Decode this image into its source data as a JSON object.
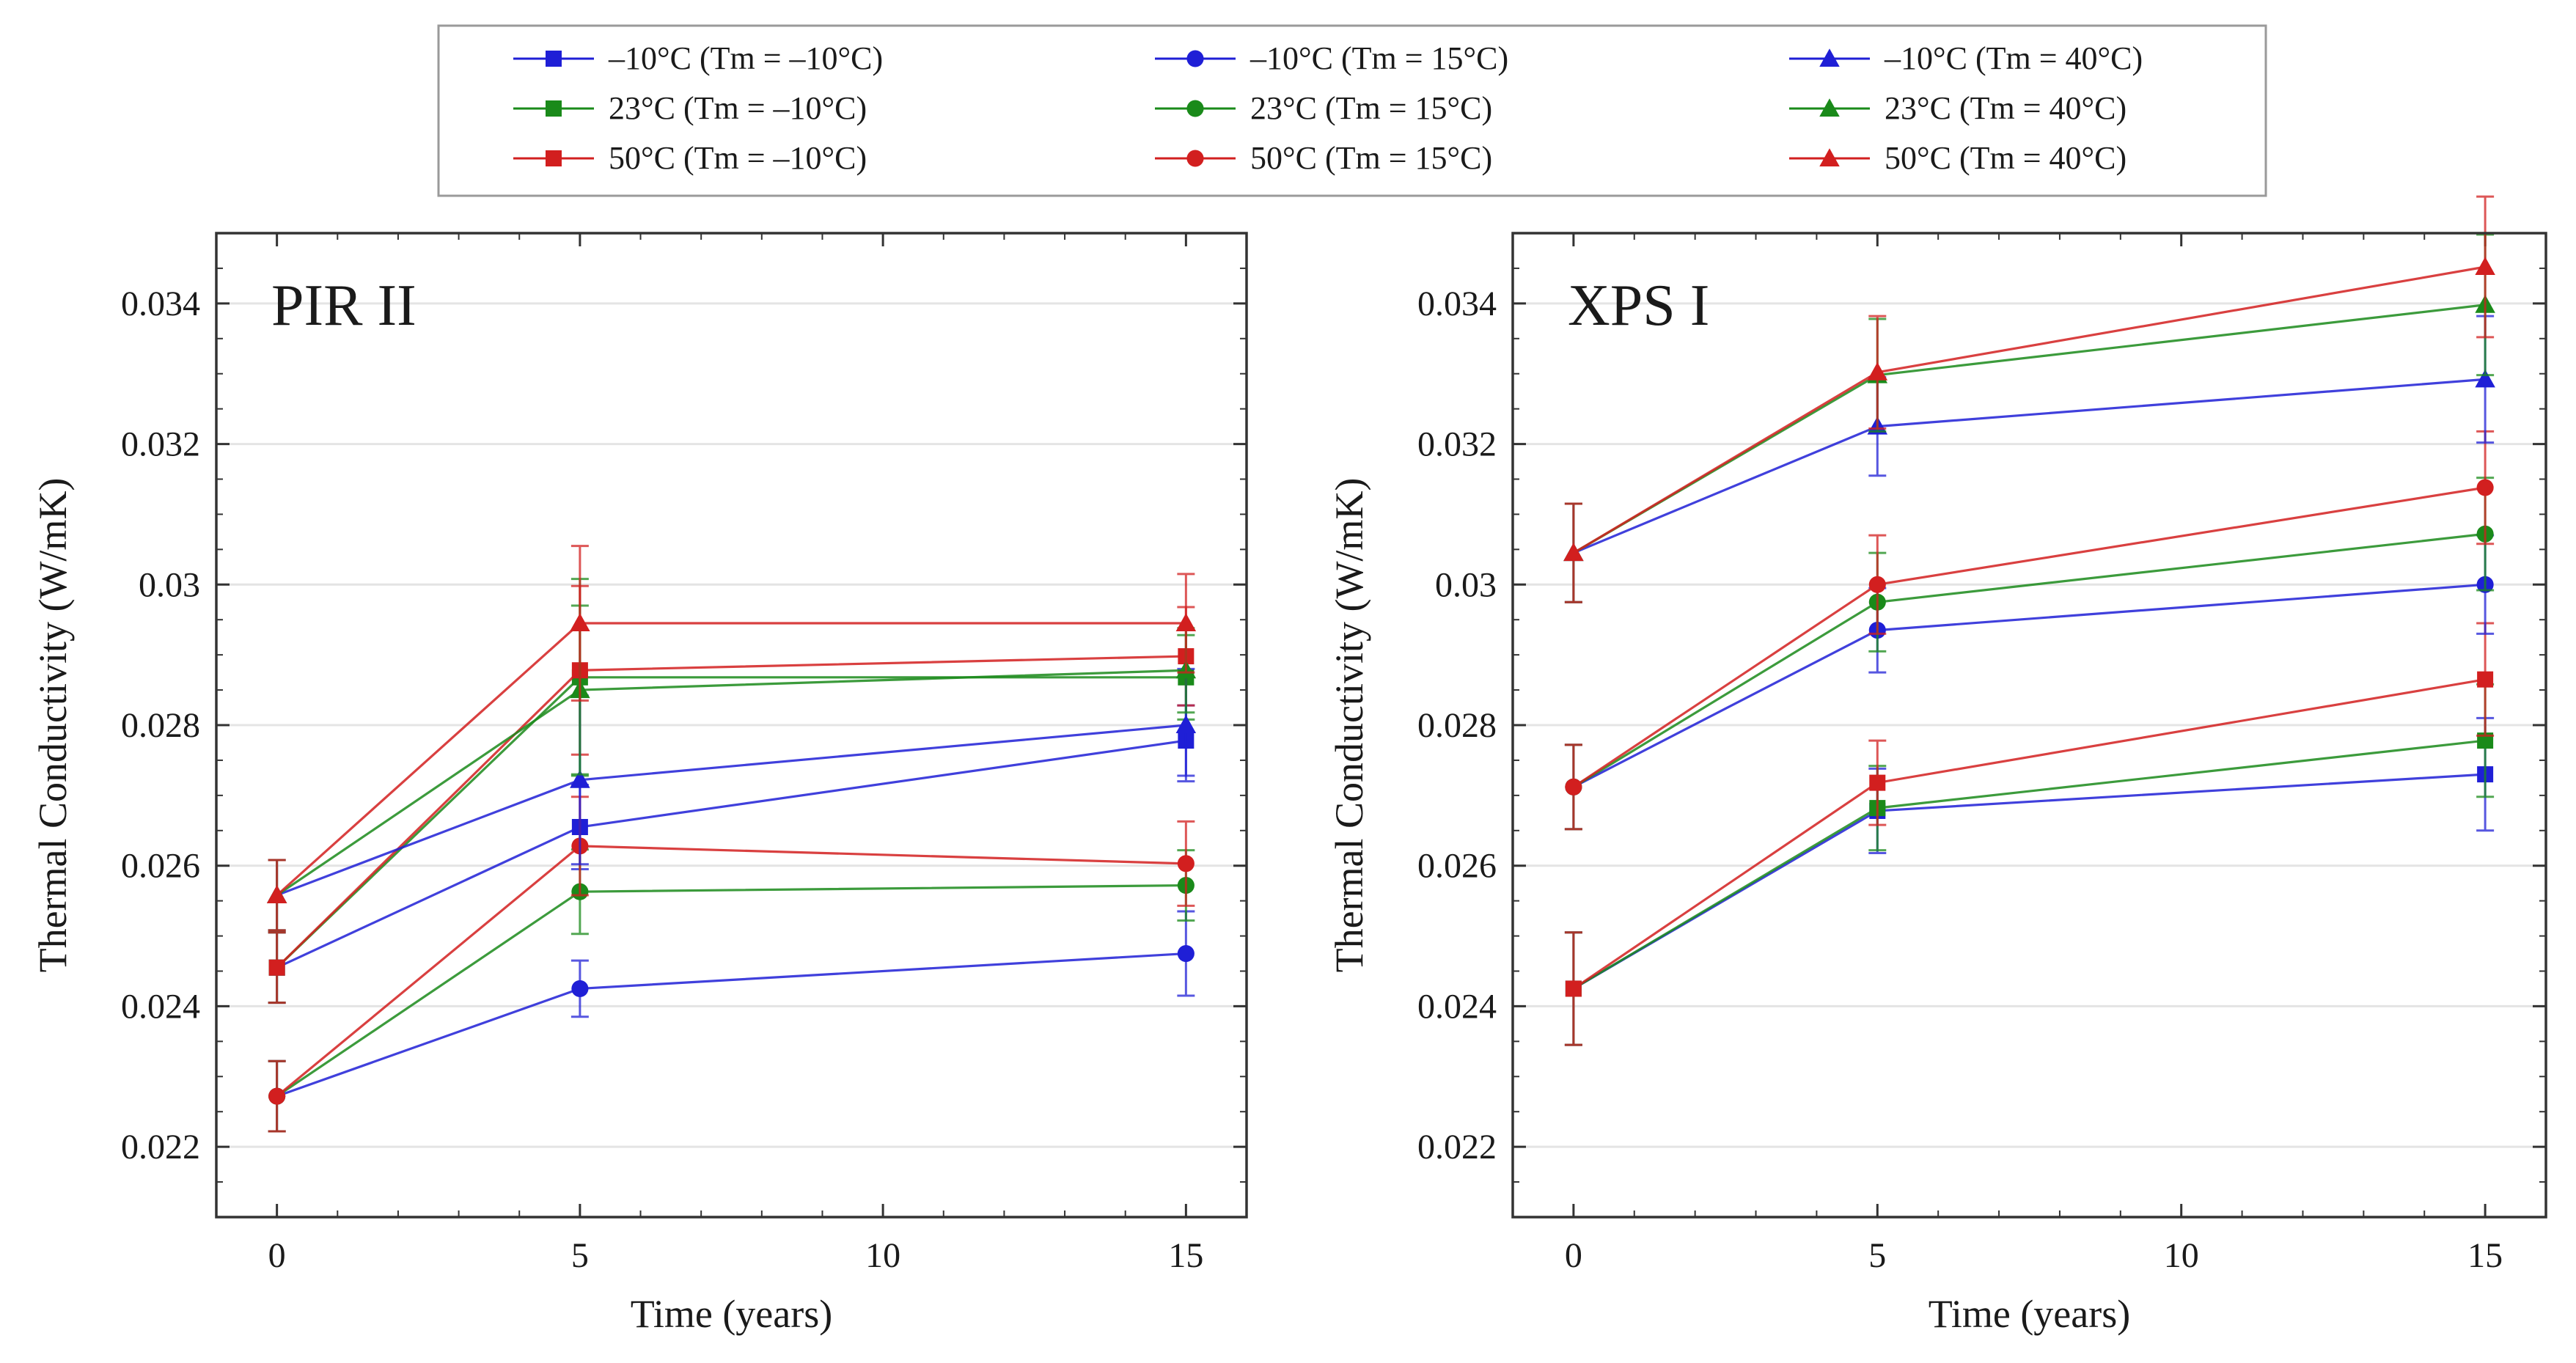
{
  "legend": {
    "entries": [
      {
        "label": "–10°C (Tm = –10°C)",
        "color": "#1f1fd6",
        "marker": "square"
      },
      {
        "label": "–10°C (Tm = 15°C)",
        "color": "#1f1fd6",
        "marker": "circle"
      },
      {
        "label": "–10°C (Tm = 40°C)",
        "color": "#1f1fd6",
        "marker": "triangle"
      },
      {
        "label": "23°C (Tm = –10°C)",
        "color": "#1a8a1a",
        "marker": "square"
      },
      {
        "label": "23°C (Tm = 15°C)",
        "color": "#1a8a1a",
        "marker": "circle"
      },
      {
        "label": "23°C (Tm = 40°C)",
        "color": "#1a8a1a",
        "marker": "triangle"
      },
      {
        "label": "50°C (Tm = –10°C)",
        "color": "#d21f1f",
        "marker": "square"
      },
      {
        "label": "50°C (Tm = 15°C)",
        "color": "#d21f1f",
        "marker": "circle"
      },
      {
        "label": "50°C (Tm = 40°C)",
        "color": "#d21f1f",
        "marker": "triangle"
      }
    ]
  },
  "chart_data": [
    {
      "type": "line",
      "title": "PIR II",
      "xlabel": "Time (years)",
      "ylabel": "Thermal Conductivity (W/mK)",
      "xlim": [
        -1,
        16
      ],
      "ylim": [
        0.021,
        0.035
      ],
      "x_ticks": [
        "0",
        "5",
        "10",
        "15"
      ],
      "y_ticks": [
        "0.022",
        "0.024",
        "0.026",
        "0.028",
        "0.03",
        "0.032",
        "0.034"
      ],
      "x": [
        0,
        5,
        15
      ],
      "series": [
        {
          "name": "–10°C (Tm = –10°C)",
          "color": "#1f1fd6",
          "marker": "square",
          "values": [
            0.02455,
            0.02655,
            0.02778
          ],
          "errors": [
            0.0005,
            0.0006,
            0.0005
          ]
        },
        {
          "name": "–10°C (Tm = 15°C)",
          "color": "#1f1fd6",
          "marker": "circle",
          "values": [
            0.02272,
            0.02425,
            0.02475
          ],
          "errors": [
            0.0005,
            0.0004,
            0.0006
          ]
        },
        {
          "name": "–10°C (Tm = 40°C)",
          "color": "#1f1fd6",
          "marker": "triangle",
          "values": [
            0.02558,
            0.02722,
            0.028
          ],
          "errors": [
            0.0005,
            0.0012,
            0.0008
          ]
        },
        {
          "name": "23°C (Tm = –10°C)",
          "color": "#1a8a1a",
          "marker": "square",
          "values": [
            0.02455,
            0.02868,
            0.02868
          ],
          "errors": [
            0.0005,
            0.0014,
            0.0006
          ]
        },
        {
          "name": "23°C (Tm = 15°C)",
          "color": "#1a8a1a",
          "marker": "circle",
          "values": [
            0.02272,
            0.02563,
            0.02572
          ],
          "errors": [
            0.0005,
            0.0006,
            0.0005
          ]
        },
        {
          "name": "23°C (Tm = 40°C)",
          "color": "#1a8a1a",
          "marker": "triangle",
          "values": [
            0.02558,
            0.0285,
            0.02878
          ],
          "errors": [
            0.0005,
            0.0012,
            0.0006
          ]
        },
        {
          "name": "50°C (Tm = –10°C)",
          "color": "#d21f1f",
          "marker": "square",
          "values": [
            0.02455,
            0.02878,
            0.02898
          ],
          "errors": [
            0.0005,
            0.0012,
            0.0007
          ]
        },
        {
          "name": "50°C (Tm = 15°C)",
          "color": "#d21f1f",
          "marker": "circle",
          "values": [
            0.02272,
            0.02628,
            0.02603
          ],
          "errors": [
            0.0005,
            0.0007,
            0.0006
          ]
        },
        {
          "name": "50°C (Tm = 40°C)",
          "color": "#d21f1f",
          "marker": "triangle",
          "values": [
            0.02558,
            0.02945,
            0.02945
          ],
          "errors": [
            0.0005,
            0.0011,
            0.0007
          ]
        }
      ]
    },
    {
      "type": "line",
      "title": "XPS I",
      "xlabel": "Time (years)",
      "ylabel": "Thermal Conductivity (W/mK)",
      "xlim": [
        -1,
        16
      ],
      "ylim": [
        0.021,
        0.035
      ],
      "x_ticks": [
        "0",
        "5",
        "10",
        "15"
      ],
      "y_ticks": [
        "0.022",
        "0.024",
        "0.026",
        "0.028",
        "0.03",
        "0.032",
        "0.034"
      ],
      "x": [
        0,
        5,
        15
      ],
      "series": [
        {
          "name": "–10°C (Tm = –10°C)",
          "color": "#1f1fd6",
          "marker": "square",
          "values": [
            0.02425,
            0.02678,
            0.0273
          ],
          "errors": [
            0.0008,
            0.0006,
            0.0008
          ]
        },
        {
          "name": "–10°C (Tm = 15°C)",
          "color": "#1f1fd6",
          "marker": "circle",
          "values": [
            0.02712,
            0.02935,
            0.03
          ],
          "errors": [
            0.0006,
            0.0006,
            0.0007
          ]
        },
        {
          "name": "–10°C (Tm = 40°C)",
          "color": "#1f1fd6",
          "marker": "triangle",
          "values": [
            0.03045,
            0.03225,
            0.03292
          ],
          "errors": [
            0.0007,
            0.0007,
            0.0009
          ]
        },
        {
          "name": "23°C (Tm = –10°C)",
          "color": "#1a8a1a",
          "marker": "square",
          "values": [
            0.02425,
            0.02682,
            0.02778
          ],
          "errors": [
            0.0008,
            0.0006,
            0.0008
          ]
        },
        {
          "name": "23°C (Tm = 15°C)",
          "color": "#1a8a1a",
          "marker": "circle",
          "values": [
            0.02712,
            0.02975,
            0.03072
          ],
          "errors": [
            0.0006,
            0.0007,
            0.0008
          ]
        },
        {
          "name": "23°C (Tm = 40°C)",
          "color": "#1a8a1a",
          "marker": "triangle",
          "values": [
            0.03045,
            0.03298,
            0.03398
          ],
          "errors": [
            0.0007,
            0.0008,
            0.001
          ]
        },
        {
          "name": "50°C (Tm = –10°C)",
          "color": "#d21f1f",
          "marker": "square",
          "values": [
            0.02425,
            0.02718,
            0.02865
          ],
          "errors": [
            0.0008,
            0.0006,
            0.0008
          ]
        },
        {
          "name": "50°C (Tm = 15°C)",
          "color": "#d21f1f",
          "marker": "circle",
          "values": [
            0.02712,
            0.03,
            0.03138
          ],
          "errors": [
            0.0006,
            0.0007,
            0.0008
          ]
        },
        {
          "name": "50°C (Tm = 40°C)",
          "color": "#d21f1f",
          "marker": "triangle",
          "values": [
            0.03045,
            0.03302,
            0.03452
          ],
          "errors": [
            0.0007,
            0.0008,
            0.001
          ]
        }
      ]
    }
  ]
}
